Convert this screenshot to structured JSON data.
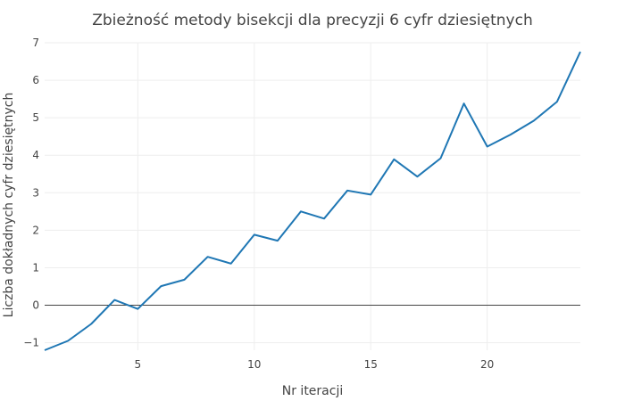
{
  "chart_data": {
    "type": "line",
    "title": "Zbieżność metody bisekcji dla precyzji 6 cyfr dziesiętnych",
    "xlabel": "Nr iteracji",
    "ylabel": "Liczba dokładnych cyfr dziesiętnych",
    "xlim": [
      1,
      24
    ],
    "ylim": [
      -1.2,
      7.0
    ],
    "xticks": [
      5,
      10,
      15,
      20
    ],
    "xtick_labels": [
      "5",
      "10",
      "15",
      "20"
    ],
    "yticks": [
      -1,
      0,
      1,
      2,
      3,
      4,
      5,
      6,
      7
    ],
    "ytick_labels": [
      "−1",
      "0",
      "1",
      "2",
      "3",
      "4",
      "5",
      "6",
      "7"
    ],
    "grid": true,
    "line_color": "#1f77b4",
    "series": [
      {
        "x": [
          1,
          2,
          3,
          4,
          5,
          6,
          7,
          8,
          9,
          10,
          11,
          12,
          13,
          14,
          15,
          16,
          17,
          18,
          19,
          20,
          21,
          22,
          23,
          24
        ],
        "values": [
          -1.2,
          -0.95,
          -0.5,
          0.14,
          -0.1,
          0.51,
          0.68,
          1.29,
          1.11,
          1.88,
          1.72,
          2.5,
          2.31,
          3.06,
          2.95,
          3.89,
          3.43,
          3.92,
          5.38,
          4.23,
          4.55,
          4.92,
          5.43,
          6.76
        ]
      }
    ]
  }
}
